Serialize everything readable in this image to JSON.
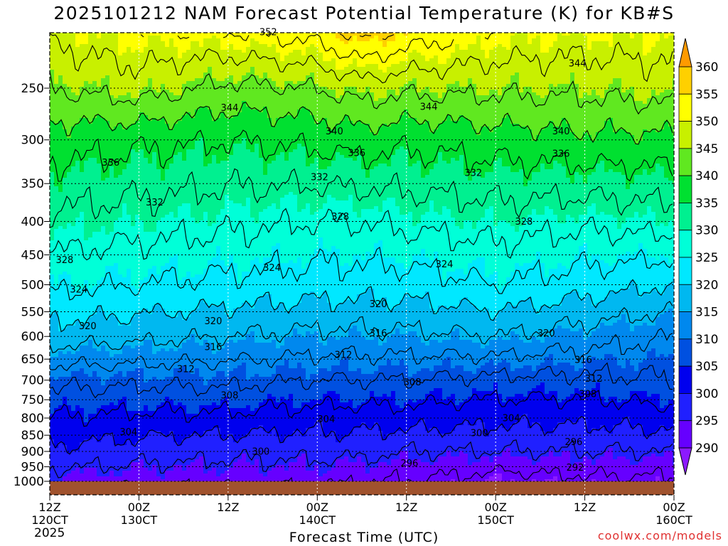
{
  "title": "2025101212 NAM Forecast Potential Temperature (K) for KB#S",
  "credit": "coolwx.com/models",
  "chart_data": {
    "type": "heatmap",
    "title": "2025101212 NAM Forecast Potential Temperature (K) for KB#S",
    "xlabel": "Forecast Time (UTC)",
    "ylabel": "",
    "y_ticks": [
      250,
      300,
      350,
      400,
      450,
      500,
      550,
      600,
      650,
      700,
      750,
      800,
      850,
      900,
      950,
      1000
    ],
    "ylim": [
      1000,
      200
    ],
    "y_scale": "log-pressure",
    "x_ticks": [
      {
        "hour": 0,
        "top": "12Z",
        "bottom": "120CT"
      },
      {
        "hour": 12,
        "top": "00Z",
        "bottom": "130CT"
      },
      {
        "hour": 24,
        "top": "12Z",
        "bottom": ""
      },
      {
        "hour": 36,
        "top": "00Z",
        "bottom": "140CT"
      },
      {
        "hour": 48,
        "top": "12Z",
        "bottom": ""
      },
      {
        "hour": 60,
        "top": "00Z",
        "bottom": "150CT"
      },
      {
        "hour": 72,
        "top": "12Z",
        "bottom": ""
      },
      {
        "hour": 84,
        "top": "00Z",
        "bottom": "160CT"
      }
    ],
    "year_label": "2025",
    "xlim": [
      0,
      84
    ],
    "grid": true,
    "colorbar": {
      "levels": [
        290,
        295,
        300,
        305,
        310,
        315,
        320,
        325,
        330,
        335,
        340,
        345,
        350,
        355,
        360
      ],
      "labels": [
        "290",
        "295",
        "300",
        "305",
        "310",
        "315",
        "320",
        "325",
        "330",
        "335",
        "340",
        "345",
        "350",
        "355",
        "360"
      ],
      "colors": [
        "#8c1aff",
        "#6600ff",
        "#2020ff",
        "#0000ee",
        "#0050e0",
        "#0088ee",
        "#00b8f0",
        "#00e8ff",
        "#00ffd8",
        "#00f090",
        "#00e030",
        "#60e820",
        "#c8f000",
        "#ffff00",
        "#ffd000",
        "#ff9a00"
      ]
    },
    "contour_interval": 4,
    "profiles": [
      {
        "hour": 0,
        "pressures": [
          1000,
          900,
          800,
          700,
          600,
          500,
          400,
          300,
          250,
          200
        ],
        "theta": [
          294,
          299,
          304,
          309,
          318,
          325,
          331,
          338,
          344,
          350
        ]
      },
      {
        "hour": 12,
        "pressures": [
          1000,
          900,
          800,
          700,
          600,
          500,
          400,
          300,
          250,
          200
        ],
        "theta": [
          293,
          298,
          303,
          309,
          317,
          324,
          330,
          337,
          346,
          352
        ]
      },
      {
        "hour": 24,
        "pressures": [
          1000,
          900,
          800,
          700,
          600,
          500,
          400,
          300,
          250,
          200
        ],
        "theta": [
          293,
          297,
          303,
          309,
          316,
          323,
          329,
          336,
          343,
          353
        ]
      },
      {
        "hour": 36,
        "pressures": [
          1000,
          900,
          800,
          700,
          600,
          500,
          400,
          300,
          250,
          200
        ],
        "theta": [
          293,
          297,
          302,
          308,
          315,
          322,
          328,
          337,
          344,
          355
        ]
      },
      {
        "hour": 42,
        "pressures": [
          1000,
          900,
          800,
          700,
          600,
          500,
          400,
          300,
          250,
          200
        ],
        "theta": [
          292,
          297,
          302,
          308,
          315,
          322,
          328,
          338,
          346,
          359
        ]
      },
      {
        "hour": 48,
        "pressures": [
          1000,
          900,
          800,
          700,
          600,
          500,
          400,
          300,
          250,
          200
        ],
        "theta": [
          292,
          296,
          302,
          308,
          315,
          322,
          329,
          337,
          345,
          356
        ]
      },
      {
        "hour": 60,
        "pressures": [
          1000,
          900,
          800,
          700,
          600,
          500,
          400,
          300,
          250,
          200
        ],
        "theta": [
          290,
          296,
          301,
          307,
          316,
          324,
          330,
          338,
          345,
          352
        ]
      },
      {
        "hour": 72,
        "pressures": [
          1000,
          900,
          800,
          700,
          600,
          500,
          400,
          300,
          250,
          200
        ],
        "theta": [
          291,
          296,
          301,
          307,
          314,
          322,
          329,
          339,
          345,
          351
        ]
      },
      {
        "hour": 84,
        "pressures": [
          1000,
          900,
          800,
          700,
          600,
          500,
          400,
          300,
          250,
          200
        ],
        "theta": [
          291,
          296,
          302,
          308,
          312,
          320,
          330,
          339,
          346,
          351
        ]
      }
    ],
    "contour_labels": [
      {
        "value": "352",
        "hour": 29.4,
        "pressure": 205
      },
      {
        "value": "344",
        "hour": 24.2,
        "pressure": 268
      },
      {
        "value": "344",
        "hour": 51.0,
        "pressure": 267
      },
      {
        "value": "344",
        "hour": 71.0,
        "pressure": 229
      },
      {
        "value": "340",
        "hour": 38.3,
        "pressure": 291
      },
      {
        "value": "340",
        "hour": 68.8,
        "pressure": 291
      },
      {
        "value": "336",
        "hour": 8.2,
        "pressure": 325
      },
      {
        "value": "336",
        "hour": 41.3,
        "pressure": 314
      },
      {
        "value": "336",
        "hour": 68.8,
        "pressure": 315
      },
      {
        "value": "332",
        "hour": 14.1,
        "pressure": 374
      },
      {
        "value": "332",
        "hour": 36.3,
        "pressure": 342
      },
      {
        "value": "332",
        "hour": 57.0,
        "pressure": 337
      },
      {
        "value": "328",
        "hour": 2.0,
        "pressure": 458
      },
      {
        "value": "328",
        "hour": 39.1,
        "pressure": 393
      },
      {
        "value": "328",
        "hour": 63.8,
        "pressure": 400
      },
      {
        "value": "324",
        "hour": 3.9,
        "pressure": 508
      },
      {
        "value": "324",
        "hour": 29.9,
        "pressure": 471
      },
      {
        "value": "324",
        "hour": 53.1,
        "pressure": 465
      },
      {
        "value": "320",
        "hour": 5.1,
        "pressure": 578
      },
      {
        "value": "320",
        "hour": 22.0,
        "pressure": 568
      },
      {
        "value": "320",
        "hour": 44.2,
        "pressure": 535
      },
      {
        "value": "320",
        "hour": 66.8,
        "pressure": 593
      },
      {
        "value": "316",
        "hour": 22.0,
        "pressure": 623
      },
      {
        "value": "316",
        "hour": 44.2,
        "pressure": 593
      },
      {
        "value": "316",
        "hour": 71.8,
        "pressure": 651
      },
      {
        "value": "312",
        "hour": 18.3,
        "pressure": 673
      },
      {
        "value": "312",
        "hour": 39.5,
        "pressure": 640
      },
      {
        "value": "312",
        "hour": 73.2,
        "pressure": 696
      },
      {
        "value": "308",
        "hour": 24.2,
        "pressure": 738
      },
      {
        "value": "308",
        "hour": 48.8,
        "pressure": 705
      },
      {
        "value": "308",
        "hour": 72.4,
        "pressure": 735
      },
      {
        "value": "304",
        "hour": 10.6,
        "pressure": 840
      },
      {
        "value": "304",
        "hour": 37.2,
        "pressure": 803
      },
      {
        "value": "304",
        "hour": 62.1,
        "pressure": 800
      },
      {
        "value": "300",
        "hour": 28.4,
        "pressure": 900
      },
      {
        "value": "300",
        "hour": 57.8,
        "pressure": 843
      },
      {
        "value": "296",
        "hour": 48.4,
        "pressure": 938
      },
      {
        "value": "296",
        "hour": 70.5,
        "pressure": 870
      },
      {
        "value": "292",
        "hour": 70.7,
        "pressure": 952
      }
    ]
  }
}
